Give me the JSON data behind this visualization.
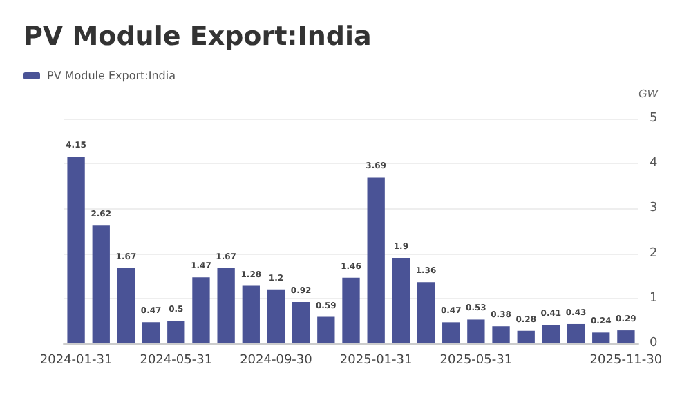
{
  "chart_data": {
    "type": "bar",
    "title": "PV Module Export:India",
    "ylabel": "GW",
    "categories": [
      "2024-01-31",
      null,
      null,
      null,
      "2024-05-31",
      null,
      null,
      null,
      "2024-09-30",
      null,
      null,
      null,
      "2025-01-31",
      null,
      null,
      null,
      "2025-05-31",
      null,
      null,
      null,
      null,
      null,
      "2025-11-30"
    ],
    "series": [
      {
        "name": "PV Module Export:India",
        "color": "#4a5396",
        "values": [
          4.15,
          2.62,
          1.67,
          0.47,
          0.5,
          1.47,
          1.67,
          1.28,
          1.2,
          0.92,
          0.59,
          1.46,
          3.69,
          1.9,
          1.36,
          0.47,
          0.53,
          0.38,
          0.28,
          0.41,
          0.43,
          0.24,
          0.29
        ]
      }
    ],
    "ylim": [
      0,
      5
    ],
    "yticks": [
      0,
      1,
      2,
      3,
      4,
      5
    ],
    "grid": "y",
    "legend": "top left",
    "data_labels": true
  }
}
